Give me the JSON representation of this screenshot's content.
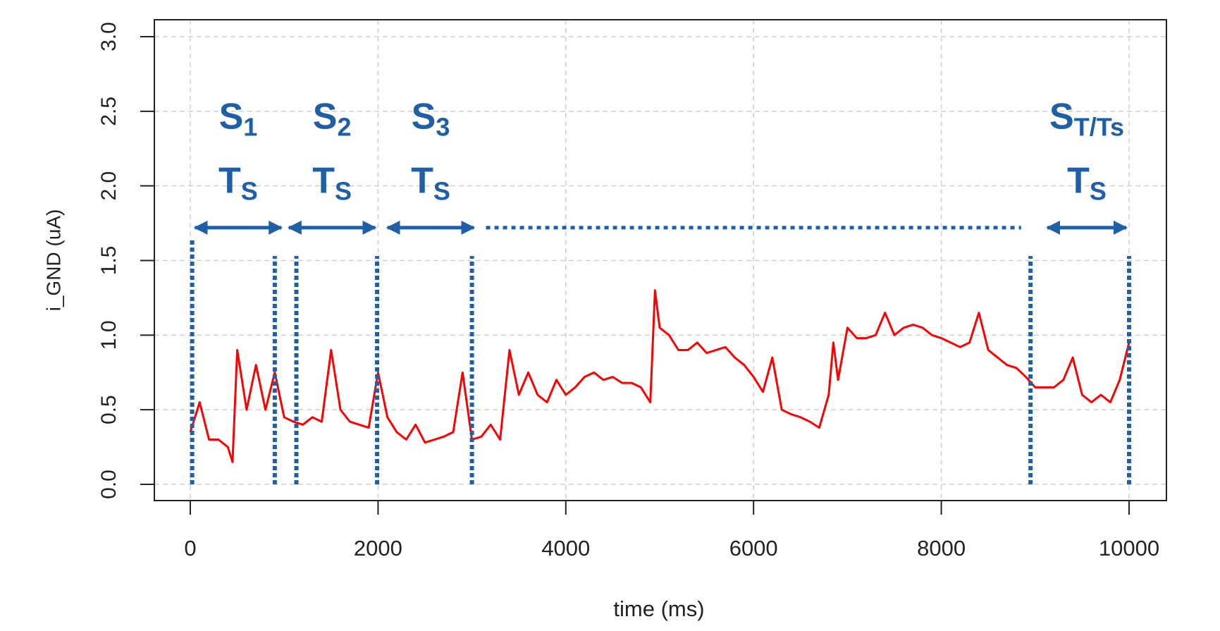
{
  "chart_data": {
    "type": "line",
    "x_label": "time (ms)",
    "y_label": "i_GND (uA)",
    "x": [
      0,
      100,
      200,
      300,
      400,
      450,
      500,
      600,
      700,
      800,
      900,
      1000,
      1100,
      1200,
      1300,
      1400,
      1500,
      1600,
      1700,
      1800,
      1900,
      2000,
      2100,
      2200,
      2300,
      2400,
      2500,
      2600,
      2700,
      2800,
      2900,
      3000,
      3100,
      3200,
      3300,
      3400,
      3500,
      3600,
      3700,
      3800,
      3900,
      4000,
      4100,
      4200,
      4300,
      4400,
      4500,
      4600,
      4700,
      4800,
      4900,
      4950,
      5000,
      5100,
      5200,
      5300,
      5400,
      5500,
      5600,
      5700,
      5800,
      5900,
      6000,
      6100,
      6200,
      6300,
      6400,
      6500,
      6600,
      6700,
      6800,
      6850,
      6900,
      7000,
      7100,
      7200,
      7300,
      7400,
      7500,
      7600,
      7700,
      7800,
      7900,
      8000,
      8100,
      8200,
      8300,
      8400,
      8500,
      8600,
      8700,
      8800,
      8900,
      9000,
      9100,
      9200,
      9300,
      9400,
      9500,
      9600,
      9700,
      9800,
      9900,
      10000
    ],
    "values": [
      0.35,
      0.55,
      0.3,
      0.3,
      0.25,
      0.15,
      0.9,
      0.5,
      0.8,
      0.5,
      0.75,
      0.45,
      0.42,
      0.4,
      0.45,
      0.42,
      0.9,
      0.5,
      0.42,
      0.4,
      0.38,
      0.75,
      0.45,
      0.35,
      0.3,
      0.4,
      0.28,
      0.3,
      0.32,
      0.35,
      0.75,
      0.3,
      0.32,
      0.4,
      0.3,
      0.9,
      0.6,
      0.75,
      0.6,
      0.55,
      0.7,
      0.6,
      0.65,
      0.72,
      0.75,
      0.7,
      0.72,
      0.68,
      0.68,
      0.65,
      0.55,
      1.3,
      1.05,
      1.0,
      0.9,
      0.9,
      0.95,
      0.88,
      0.9,
      0.92,
      0.85,
      0.8,
      0.72,
      0.62,
      0.85,
      0.5,
      0.47,
      0.45,
      0.42,
      0.38,
      0.6,
      0.95,
      0.7,
      1.05,
      0.98,
      0.98,
      1.0,
      1.15,
      1.0,
      1.05,
      1.07,
      1.05,
      1.0,
      0.98,
      0.95,
      0.92,
      0.95,
      1.15,
      0.9,
      0.85,
      0.8,
      0.78,
      0.72,
      0.65,
      0.65,
      0.65,
      0.7,
      0.85,
      0.6,
      0.55,
      0.6,
      0.55,
      0.7,
      0.95
    ],
    "color": "#ff0000",
    "xlim": [
      0,
      10000
    ],
    "xticks": [
      0,
      2000,
      4000,
      6000,
      8000,
      10000
    ],
    "ylim": [
      0,
      3
    ],
    "yticks": [
      {
        "value": 0,
        "label": "0.0"
      },
      {
        "value": 0.5,
        "label": "0.5"
      },
      {
        "value": 1,
        "label": "1.0"
      },
      {
        "value": 1.5,
        "label": "1.5"
      },
      {
        "value": 2,
        "label": "2.0"
      },
      {
        "value": 2.5,
        "label": "2.5"
      },
      {
        "value": 3,
        "label": "3.0"
      }
    ],
    "grid": true,
    "annotation_color": "#1f5fa8",
    "annotations": [
      {
        "label": "S",
        "sub": "1",
        "period": "T",
        "period_sub": "S",
        "span": [
          20,
          1000
        ]
      },
      {
        "label": "S",
        "sub": "2",
        "period": "T",
        "period_sub": "S",
        "span": [
          1020,
          2000
        ]
      },
      {
        "label": "S",
        "sub": "3",
        "period": "T",
        "period_sub": "S",
        "span": [
          2070,
          3050
        ]
      },
      {
        "label": "S",
        "sub": "T/Ts",
        "period": "T",
        "period_sub": "S",
        "span": [
          9100,
          10000
        ]
      }
    ],
    "dotted_span": [
      3150,
      8850
    ],
    "vlines": [
      20,
      900,
      1130,
      1990,
      3000,
      8950,
      10000
    ]
  }
}
